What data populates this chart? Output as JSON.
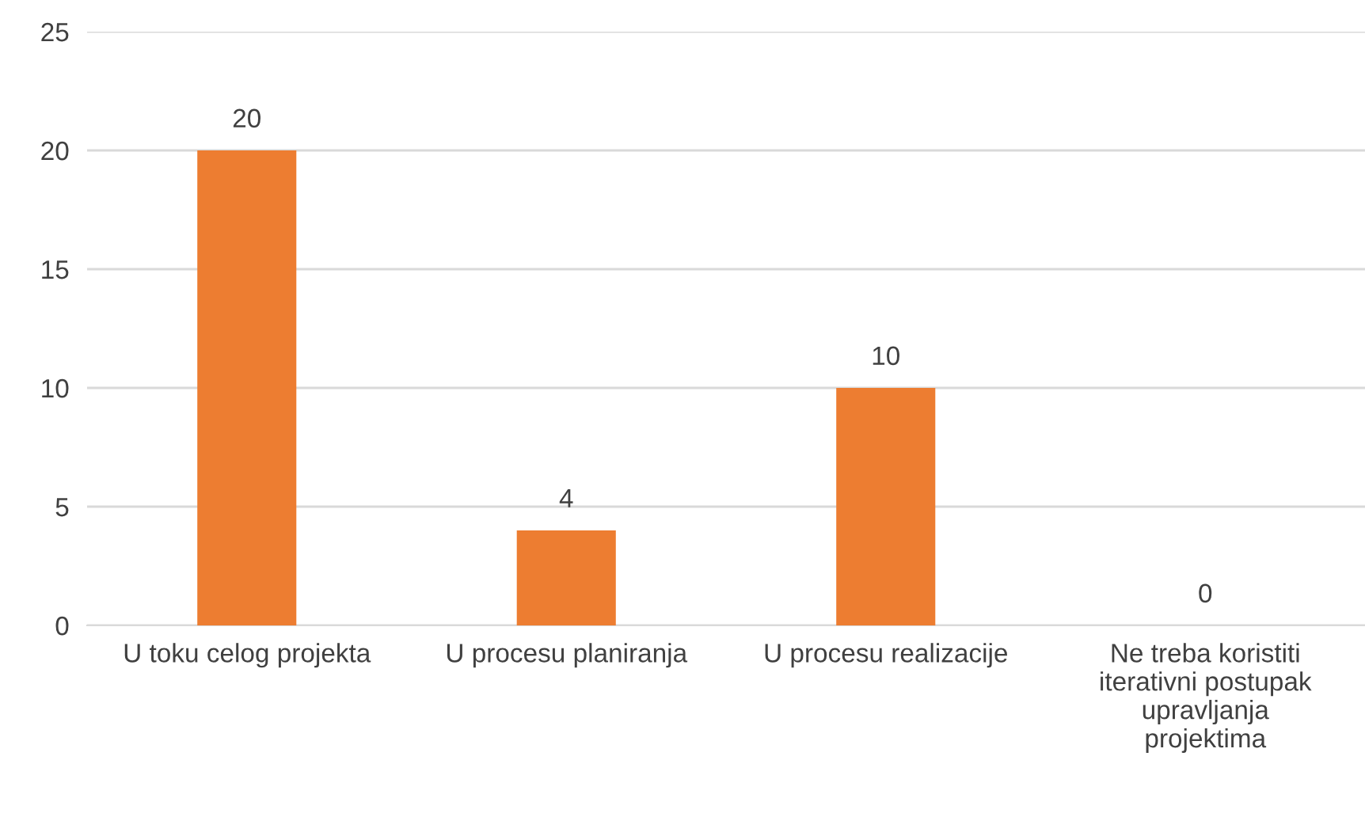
{
  "chart_data": {
    "type": "bar",
    "categories": [
      "U toku celog projekta",
      "U procesu planiranja",
      "U procesu realizacije",
      "Ne treba koristiti\niterativni postupak\nupravljanja\nprojektima"
    ],
    "values": [
      20,
      4,
      10,
      0
    ],
    "color": "#ed7d31",
    "ylim": [
      0,
      25
    ],
    "yticks": [
      0,
      5,
      10,
      15,
      20,
      25
    ],
    "grid": "y",
    "data_labels": true
  }
}
